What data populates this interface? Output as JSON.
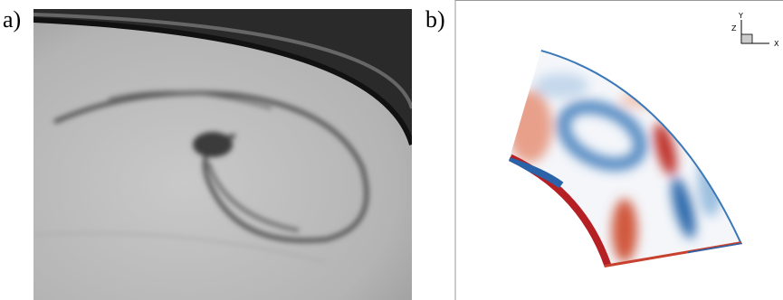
{
  "panels": [
    {
      "label": "a)"
    },
    {
      "label": "b)",
      "axes": {
        "y": "Y",
        "z": "Z",
        "x": "X"
      }
    }
  ]
}
